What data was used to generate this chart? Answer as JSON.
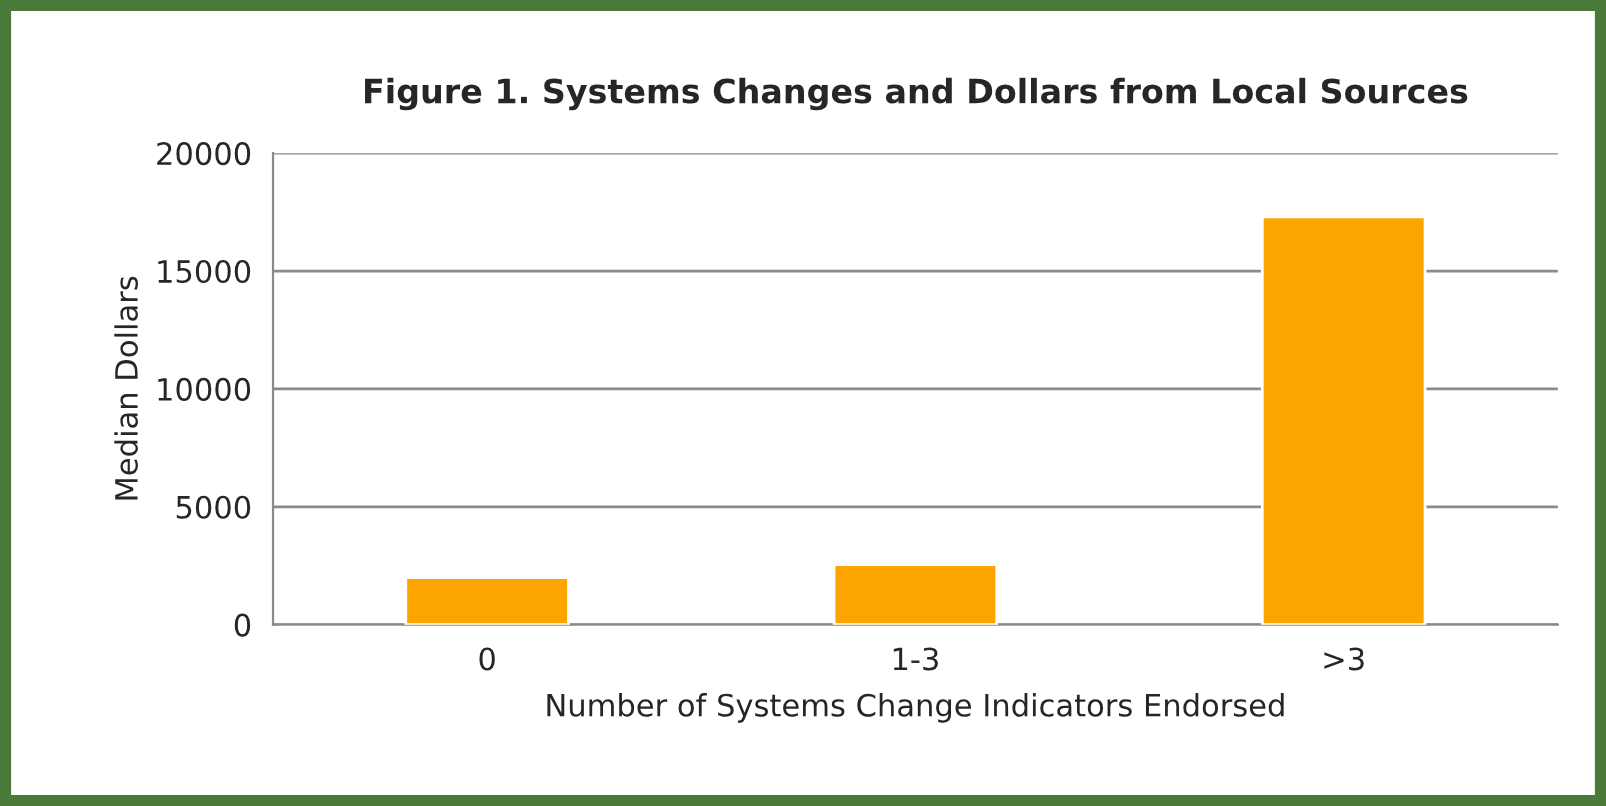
{
  "chart_data": {
    "type": "bar",
    "title": "Figure 1. Systems Changes and Dollars from Local Sources",
    "xlabel": "Number of Systems Change Indicators Endorsed",
    "ylabel": "Median Dollars",
    "categories": [
      "0",
      "1-3",
      ">3"
    ],
    "values": [
      2000,
      2550,
      17300
    ],
    "color": "#fca500",
    "ylim": [
      0,
      20000
    ],
    "yticks": [
      0,
      5000,
      10000,
      15000,
      20000
    ],
    "grid": "y",
    "legend": false
  }
}
